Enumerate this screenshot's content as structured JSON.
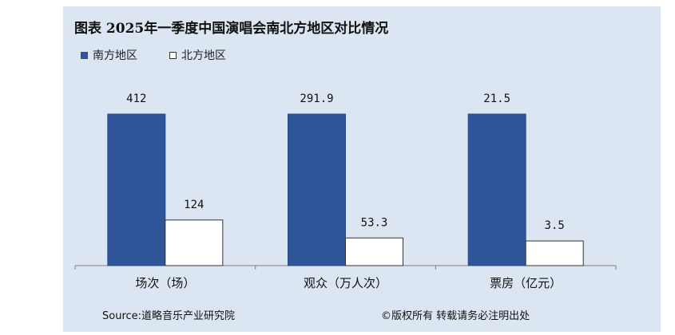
{
  "chart_data": {
    "type": "bar",
    "title": "图表  2025年一季度中国演唱会南北方地区对比情况",
    "categories": [
      "场次（场）",
      "观众（万人次）",
      "票房（亿元）"
    ],
    "series": [
      {
        "name": "南方地区",
        "values": [
          412,
          291.9,
          21.5
        ],
        "labels": [
          "412",
          "291.9",
          "21.5"
        ],
        "color": "#2e5597"
      },
      {
        "name": "北方地区",
        "values": [
          124,
          53.3,
          3.5
        ],
        "labels": [
          "124",
          "53.3",
          "3.5"
        ],
        "color": "#ffffff"
      }
    ],
    "legend_position": "top-left",
    "grid": false
  },
  "footer": {
    "source": "Source:道略音乐产业研究院",
    "copyright": "©版权所有   转载请务必注明出处"
  }
}
